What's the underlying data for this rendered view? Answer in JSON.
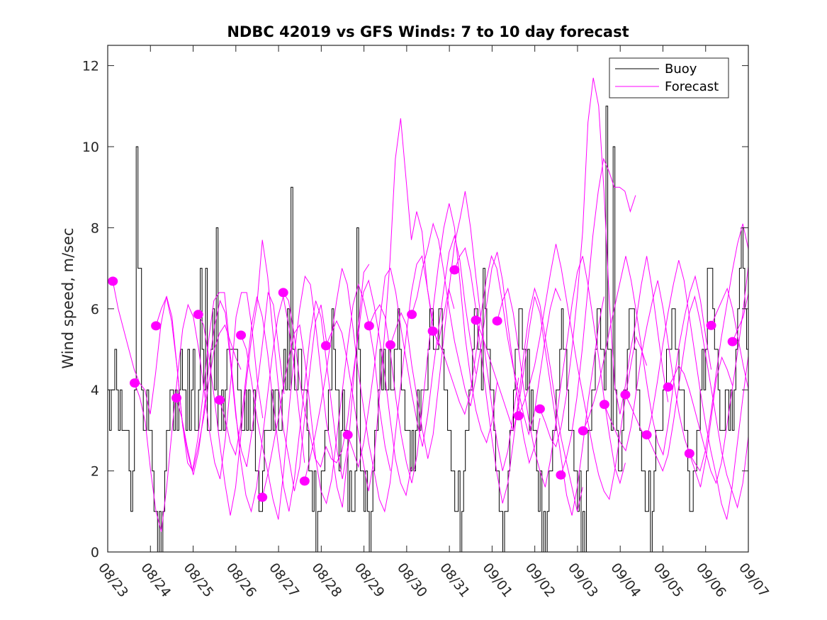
{
  "chart_data": {
    "type": "line",
    "title": "NDBC 42019 vs GFS Winds: 7 to 10 day forecast",
    "xlabel": "",
    "ylabel": "Wind speed, m/sec",
    "xlim_days": [
      0,
      15
    ],
    "ylim": [
      0,
      12.5
    ],
    "yticks": [
      0,
      2,
      4,
      6,
      8,
      10,
      12
    ],
    "xtick_labels": [
      "08/23",
      "08/24",
      "08/25",
      "08/26",
      "08/27",
      "08/28",
      "08/29",
      "08/30",
      "08/31",
      "09/01",
      "09/02",
      "09/03",
      "09/04",
      "09/05",
      "09/06",
      "09/07"
    ],
    "x_units": "days since 08/23 00Z",
    "grid": false,
    "legend": {
      "position": "top-right",
      "entries": [
        {
          "label": "Buoy",
          "color": "#000000"
        },
        {
          "label": "Forecast",
          "color": "#ff00ff"
        }
      ]
    },
    "colors": {
      "buoy": "#000000",
      "forecast": "#ff00ff",
      "axis": "#262626"
    },
    "buoy": {
      "name": "Buoy",
      "step_hours": 1,
      "start_day": 0,
      "values": [
        4,
        3,
        4,
        4,
        5,
        4,
        3,
        4,
        3,
        3,
        3,
        3,
        2,
        1,
        2,
        4,
        10,
        7,
        7,
        4,
        3,
        3,
        4,
        3,
        3,
        2,
        1,
        1,
        0,
        1,
        0,
        1,
        2,
        3,
        3,
        4,
        4,
        3,
        4,
        3,
        4,
        5,
        4,
        4,
        3,
        5,
        3,
        4,
        5,
        3,
        3,
        4,
        7,
        5,
        4,
        7,
        3,
        3,
        5,
        6,
        4,
        8,
        3,
        3,
        4,
        3,
        4,
        5,
        5,
        5,
        5,
        5,
        5,
        4,
        4,
        3,
        3,
        4,
        3,
        4,
        3,
        3,
        4,
        2,
        2,
        1,
        1,
        2,
        3,
        3,
        3,
        3,
        4,
        3,
        4,
        4,
        3,
        3,
        4,
        5,
        4,
        6,
        4,
        9,
        5,
        4,
        4,
        5,
        5,
        4,
        4,
        4,
        3,
        2,
        2,
        1,
        2,
        0,
        1,
        1,
        2,
        2,
        3,
        3,
        4,
        4,
        6,
        5,
        4,
        4,
        2,
        3,
        4,
        3,
        3,
        1,
        2,
        1,
        1,
        2,
        8,
        5,
        2,
        2,
        1,
        2,
        1,
        0,
        1,
        2,
        3,
        3,
        4,
        5,
        4,
        5,
        4,
        4,
        5,
        4,
        4,
        5,
        5,
        6,
        5,
        4,
        4,
        3,
        3,
        3,
        2,
        3,
        2,
        3,
        4,
        3,
        4,
        4,
        4,
        4,
        5,
        6,
        6,
        5,
        5,
        5,
        6,
        6,
        5,
        4,
        4,
        3,
        3,
        2,
        2,
        1,
        1,
        2,
        0,
        1,
        2,
        3,
        3,
        4,
        4,
        5,
        6,
        6,
        5,
        5,
        4,
        7,
        6,
        5,
        5,
        4,
        4,
        3,
        2,
        2,
        1,
        1,
        0,
        1,
        1,
        2,
        3,
        3,
        4,
        5,
        5,
        6,
        6,
        5,
        5,
        4,
        5,
        3,
        4,
        3,
        3,
        2,
        1,
        2,
        0,
        1,
        0,
        1,
        2,
        2,
        3,
        3,
        4,
        4,
        5,
        6,
        5,
        5,
        4,
        3,
        3,
        3,
        2,
        2,
        1,
        2,
        0,
        1,
        0,
        2,
        3,
        3,
        4,
        4,
        5,
        6,
        6,
        5,
        5,
        4,
        11,
        5,
        5,
        3,
        10,
        4,
        3,
        2,
        2,
        3,
        4,
        4,
        5,
        6,
        6,
        6,
        5,
        4,
        4,
        3,
        2,
        2,
        1,
        1,
        2,
        0,
        1,
        2,
        3,
        3,
        3,
        3,
        4,
        4,
        5,
        5,
        5,
        6,
        6,
        5,
        5,
        4,
        4,
        4,
        3,
        3,
        2,
        1,
        1,
        2,
        2,
        3,
        3,
        4,
        5,
        4,
        5,
        7,
        7,
        7,
        6,
        5,
        5,
        4,
        3,
        3,
        3,
        4,
        4,
        3,
        4,
        3,
        4,
        5,
        6,
        7,
        8,
        7,
        6,
        5,
        5,
        4,
        4,
        3,
        3,
        4,
        4,
        4
      ]
    },
    "forecast_runs": [
      {
        "start_day": 0.12,
        "step_hours": 3,
        "values": [
          6.68,
          6.0,
          5.5,
          5.0,
          4.5,
          4.17,
          4.0,
          3.4,
          4.4,
          5.6,
          6.3,
          5.7,
          4.6,
          3.2,
          2.2,
          2.0,
          2.6,
          3.3,
          4.2,
          5.0,
          5.4,
          5.6,
          5.2,
          4.8,
          4.5
        ]
      },
      {
        "start_day": 0.63,
        "step_hours": 3,
        "values": [
          4.17,
          3.8,
          3.2,
          2.0,
          1.0,
          0.5,
          1.6,
          3.0,
          4.3,
          5.5,
          6.1,
          5.8,
          5.0,
          4.0,
          3.0,
          2.2,
          1.8,
          2.8,
          4.2,
          5.8,
          6.4,
          6.4,
          5.5,
          4.2,
          3.3
        ]
      },
      {
        "start_day": 1.13,
        "step_hours": 3,
        "values": [
          5.58,
          6.0,
          6.3,
          5.8,
          4.5,
          3.1,
          2.4,
          1.9,
          2.5,
          3.5,
          4.7,
          5.6,
          6.2,
          5.9,
          4.6,
          3.3,
          2.5,
          2.1,
          3.0,
          4.1,
          5.2,
          6.4,
          6.1,
          5.0,
          3.9
        ]
      },
      {
        "start_day": 1.61,
        "step_hours": 3,
        "values": [
          3.8,
          3.3,
          2.6,
          2.0,
          2.8,
          3.9,
          5.2,
          6.2,
          6.4,
          6.4,
          5.0,
          3.6,
          2.3,
          1.4,
          1.0,
          1.6,
          2.7,
          3.8,
          4.9,
          5.8,
          6.3,
          5.6,
          4.6,
          3.4,
          2.2
        ]
      },
      {
        "start_day": 2.12,
        "step_hours": 3,
        "values": [
          5.86,
          5.6,
          4.8,
          3.8,
          2.7,
          1.7,
          0.9,
          1.6,
          2.9,
          4.2,
          5.3,
          6.1,
          7.7,
          6.8,
          5.4,
          4.1,
          3.0,
          2.3,
          1.5,
          2.1,
          3.4,
          4.6,
          5.7,
          6.1,
          5.2
        ]
      },
      {
        "start_day": 2.62,
        "step_hours": 3,
        "values": [
          3.75,
          3.3,
          2.7,
          2.4,
          3.2,
          4.4,
          5.6,
          6.3,
          5.8,
          4.9,
          3.7,
          2.6,
          1.6,
          1.0,
          1.8,
          3.0,
          4.2,
          5.4,
          6.2,
          5.8,
          4.7,
          3.6,
          2.5,
          1.8,
          2.6
        ]
      },
      {
        "start_day": 3.12,
        "step_hours": 3,
        "values": [
          5.35,
          5.0,
          4.2,
          3.3,
          2.6,
          2.0,
          1.3,
          0.8,
          2.0,
          3.5,
          4.9,
          6.0,
          6.8,
          6.6,
          5.6,
          4.4,
          3.2,
          2.5,
          1.6,
          1.1,
          2.4,
          4.1,
          5.6,
          6.9,
          7.1
        ]
      },
      {
        "start_day": 3.62,
        "step_hours": 3,
        "values": [
          1.35,
          1.9,
          2.6,
          3.3,
          4.1,
          4.8,
          5.4,
          5.6,
          4.7,
          3.5,
          2.3,
          1.5,
          1.2,
          1.8,
          2.9,
          4.0,
          5.1,
          6.1,
          6.6,
          6.2,
          5.6,
          4.8,
          3.5,
          2.6,
          2.0
        ]
      },
      {
        "start_day": 4.11,
        "step_hours": 3,
        "values": [
          6.4,
          6.2,
          5.4,
          4.3,
          3.5,
          2.9,
          2.3,
          2.1,
          2.6,
          2.3,
          2.2,
          2.5,
          3.2,
          4.3,
          5.3,
          6.4,
          6.7,
          6.1,
          5.3,
          4.4,
          3.3,
          2.3,
          1.7,
          1.4,
          2.1
        ]
      },
      {
        "start_day": 4.61,
        "step_hours": 3,
        "values": [
          1.75,
          2.3,
          2.9,
          3.6,
          4.4,
          5.3,
          6.2,
          7.0,
          6.6,
          5.6,
          4.5,
          3.6,
          2.7,
          2.0,
          1.3,
          1.0,
          1.7,
          2.9,
          4.1,
          5.3,
          6.4,
          7.1,
          7.3,
          6.5,
          5.7
        ]
      },
      {
        "start_day": 5.11,
        "step_hours": 3,
        "values": [
          5.09,
          5.4,
          5.7,
          5.4,
          4.7,
          3.9,
          3.0,
          2.2,
          1.5,
          2.3,
          3.8,
          5.4,
          7.2,
          9.7,
          10.7,
          9.2,
          7.7,
          8.4,
          7.9,
          6.5,
          5.6,
          5.1,
          5.8,
          6.5,
          6.0
        ]
      },
      {
        "start_day": 5.62,
        "step_hours": 3,
        "values": [
          2.89,
          2.5,
          2.1,
          2.7,
          3.6,
          4.6,
          5.7,
          6.8,
          7.0,
          6.4,
          5.5,
          4.7,
          3.9,
          3.2,
          2.6,
          3.4,
          4.5,
          5.5,
          6.5,
          7.4,
          7.8,
          7.2,
          6.1,
          5.2,
          4.4
        ]
      },
      {
        "start_day": 6.12,
        "step_hours": 3,
        "values": [
          5.58,
          5.9,
          6.1,
          5.8,
          4.9,
          3.8,
          2.9,
          2.2,
          1.7,
          2.4,
          3.6,
          4.9,
          6.0,
          7.1,
          8.0,
          8.6,
          8.0,
          6.7,
          5.3,
          4.3,
          3.5,
          3.0,
          2.7,
          3.2,
          4.2
        ]
      },
      {
        "start_day": 6.62,
        "step_hours": 3,
        "values": [
          5.11,
          5.5,
          5.9,
          5.6,
          4.6,
          3.8,
          3.0,
          2.3,
          2.9,
          4.1,
          5.3,
          6.5,
          7.6,
          8.2,
          8.9,
          8.0,
          6.8,
          5.7,
          4.6,
          3.6,
          2.7,
          2.0,
          2.5,
          3.4,
          4.3
        ]
      },
      {
        "start_day": 7.12,
        "step_hours": 3,
        "values": [
          5.86,
          6.3,
          7.0,
          7.5,
          8.1,
          7.7,
          6.9,
          6.0,
          5.2,
          4.6,
          4.0,
          3.6,
          4.3,
          5.1,
          6.1,
          7.0,
          7.4,
          6.7,
          5.6,
          4.6,
          3.6,
          2.8,
          2.2,
          2.6,
          3.3
        ]
      },
      {
        "start_day": 7.61,
        "step_hours": 3,
        "values": [
          5.45,
          5.2,
          4.9,
          4.5,
          4.1,
          3.7,
          3.4,
          3.9,
          4.8,
          5.8,
          6.7,
          7.3,
          7.0,
          6.2,
          5.3,
          4.6,
          4.0,
          3.4,
          2.9,
          3.4,
          4.3,
          5.2,
          6.0,
          6.5,
          6.2
        ]
      },
      {
        "start_day": 8.12,
        "step_hours": 3,
        "values": [
          6.96,
          7.3,
          7.5,
          6.9,
          6.0,
          4.9,
          3.8,
          2.8,
          1.9,
          1.2,
          1.7,
          2.7,
          3.8,
          4.9,
          5.9,
          6.5,
          6.1,
          5.3,
          4.5,
          3.6,
          2.8,
          2.2,
          1.6,
          1.0,
          1.6
        ]
      },
      {
        "start_day": 8.62,
        "step_hours": 3,
        "values": [
          5.72,
          5.4,
          5.0,
          4.6,
          4.2,
          3.8,
          3.4,
          3.0,
          3.6,
          4.5,
          5.5,
          6.3,
          5.9,
          5.0,
          4.1,
          3.2,
          2.3,
          1.4,
          0.9,
          1.6,
          2.6,
          3.7,
          4.6,
          5.6,
          6.3
        ]
      },
      {
        "start_day": 9.12,
        "step_hours": 3,
        "values": [
          5.7,
          6.2,
          6.5,
          5.9,
          5.0,
          4.0,
          3.2,
          2.5,
          2.0,
          1.6,
          2.3,
          3.2,
          4.2,
          5.1,
          6.1,
          6.9,
          7.3,
          6.6,
          5.7,
          4.8,
          3.8,
          2.9,
          2.1,
          1.7,
          2.2
        ]
      },
      {
        "start_day": 9.62,
        "step_hours": 3,
        "values": [
          3.36,
          3.7,
          4.1,
          4.6,
          5.3,
          6.1,
          6.9,
          7.6,
          7.0,
          6.2,
          5.4,
          4.6,
          3.9,
          3.2,
          2.5,
          1.9,
          1.5,
          1.3,
          2.0,
          2.9,
          3.8,
          4.6,
          5.3,
          5.0,
          4.6
        ]
      },
      {
        "start_day": 10.12,
        "step_hours": 3,
        "values": [
          3.53,
          3.2,
          2.8,
          2.6,
          3.1,
          3.9,
          5.0,
          6.3,
          7.9,
          10.6,
          11.7,
          11.0,
          8.9,
          6.2,
          4.1,
          3.4,
          4.1,
          5.0,
          5.7,
          6.6,
          7.3,
          6.5,
          5.5,
          4.5,
          3.7
        ]
      },
      {
        "start_day": 10.61,
        "step_hours": 3,
        "values": [
          1.9,
          2.3,
          2.9,
          3.8,
          5.0,
          6.4,
          7.8,
          8.9,
          9.7,
          9.4,
          9.0,
          9.0,
          8.9,
          8.4,
          8.8
        ]
      },
      {
        "start_day": 11.13,
        "step_hours": 3,
        "values": [
          2.99,
          3.3,
          3.7,
          4.2,
          4.8,
          5.5,
          6.1,
          6.7,
          7.3,
          6.7,
          5.9,
          5.0,
          4.1,
          3.3,
          2.7,
          2.4,
          3.2,
          4.2,
          5.1,
          5.8,
          6.4,
          6.8,
          6.2,
          5.3,
          4.5
        ]
      },
      {
        "start_day": 11.63,
        "step_hours": 3,
        "values": [
          3.64,
          3.3,
          3.0,
          2.7,
          2.5,
          3.1,
          4.0,
          4.9,
          5.6,
          6.2,
          6.7,
          6.0,
          5.1,
          4.2,
          3.4,
          2.8,
          2.4,
          2.0,
          1.6,
          2.3,
          3.3,
          4.3,
          4.8,
          4.5,
          4.1
        ]
      },
      {
        "start_day": 12.12,
        "step_hours": 3,
        "values": [
          3.88,
          3.6,
          3.3,
          3.0,
          2.8,
          3.4,
          4.2,
          5.1,
          5.9,
          6.6,
          7.2,
          6.7,
          5.8,
          4.9,
          4.0,
          3.2,
          2.5,
          1.9,
          1.2,
          0.8,
          1.6,
          2.7,
          3.8,
          4.8,
          5.6
        ]
      },
      {
        "start_day": 12.62,
        "step_hours": 3,
        "values": [
          2.89,
          2.6,
          2.3,
          2.0,
          2.4,
          3.2,
          4.1,
          5.0,
          5.9,
          6.3,
          5.7,
          4.9,
          4.1,
          3.3,
          2.5,
          1.9,
          1.5,
          1.1,
          1.7,
          2.8,
          4.1,
          5.5,
          7.0,
          8.4,
          7.1
        ]
      },
      {
        "start_day": 13.12,
        "step_hours": 3,
        "values": [
          4.07,
          4.3,
          4.6,
          4.4,
          4.0,
          3.5,
          3.0,
          2.5,
          2.0,
          1.7,
          2.2,
          3.1,
          4.0,
          4.9,
          5.9,
          7.0,
          8.1,
          7.4,
          6.3,
          5.4,
          4.6,
          4.0,
          3.6,
          3.4,
          4.3
        ]
      },
      {
        "start_day": 13.62,
        "step_hours": 3,
        "values": [
          2.43,
          2.2,
          2.0,
          2.5,
          3.4,
          4.4,
          5.3,
          6.1,
          6.9,
          7.6,
          8.1,
          7.5,
          6.6,
          5.7,
          4.9,
          4.2,
          3.7,
          4.5,
          5.4,
          6.1,
          6.7,
          6.9
        ]
      },
      {
        "start_day": 14.13,
        "step_hours": 3,
        "values": [
          5.59,
          5.9,
          6.2,
          6.5,
          6.0,
          5.3,
          4.6,
          4.0,
          4.4,
          5.0,
          5.6,
          6.2
        ]
      },
      {
        "start_day": 14.63,
        "step_hours": 3,
        "values": [
          5.19,
          5.5,
          5.8,
          6.4,
          6.8,
          6.2,
          5.4
        ]
      }
    ],
    "forecast_markers": {
      "name": "Forecast",
      "days": [
        0.12,
        0.63,
        1.13,
        1.61,
        2.12,
        2.62,
        3.12,
        3.62,
        4.11,
        4.61,
        5.11,
        5.62,
        6.12,
        6.62,
        7.12,
        7.61,
        8.12,
        8.62,
        9.12,
        9.62,
        10.12,
        10.61,
        11.13,
        11.63,
        12.12,
        12.62,
        13.12,
        13.62,
        14.13,
        14.63
      ],
      "values": [
        6.68,
        4.17,
        5.58,
        3.8,
        5.86,
        3.75,
        5.35,
        1.35,
        6.4,
        1.75,
        5.09,
        2.89,
        5.58,
        5.11,
        5.86,
        5.45,
        6.96,
        5.72,
        5.7,
        3.36,
        3.53,
        1.9,
        2.99,
        3.64,
        3.88,
        2.89,
        4.07,
        2.43,
        5.59,
        5.19
      ]
    }
  }
}
